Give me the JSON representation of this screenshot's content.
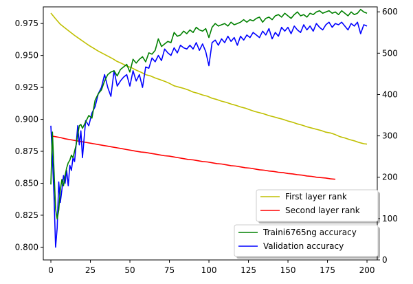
{
  "chart_data": {
    "type": "line",
    "x_ticks": [
      0,
      25,
      50,
      75,
      100,
      125,
      150,
      175,
      200
    ],
    "left_axis": {
      "ylim": [
        0.79,
        0.988
      ],
      "ticks": [
        "0.800",
        "0.825",
        "0.850",
        "0.875",
        "0.900",
        "0.925",
        "0.950",
        "0.975"
      ]
    },
    "right_axis": {
      "ylim": [
        0,
        612
      ],
      "ticks": [
        "0",
        "100",
        "200",
        "300",
        "400",
        "500",
        "600"
      ]
    },
    "xlim": [
      -4.8,
      206.5
    ],
    "legend_right": [
      {
        "label": "First layer rank",
        "color": "#bfbf00"
      },
      {
        "label": "Second layer rank",
        "color": "#ff0000"
      }
    ],
    "legend_left": [
      {
        "label": "Traini6765ng accuracy",
        "color": "#008000"
      },
      {
        "label": "Validation accuracy",
        "color": "#0000ff"
      }
    ],
    "series": [
      {
        "name": "Traini6765ng accuracy",
        "axis": "left",
        "color": "#008000",
        "x": [
          0,
          1,
          2,
          3,
          4,
          5,
          6,
          7,
          8,
          9,
          10,
          11,
          12,
          13,
          14,
          15,
          16,
          17,
          18,
          19,
          20,
          22,
          24,
          26,
          28,
          30,
          32,
          34,
          36,
          38,
          40,
          42,
          44,
          46,
          48,
          50,
          52,
          54,
          56,
          58,
          60,
          62,
          64,
          66,
          68,
          70,
          72,
          74,
          76,
          78,
          80,
          82,
          84,
          86,
          88,
          90,
          92,
          94,
          96,
          98,
          100,
          102,
          104,
          106,
          108,
          110,
          112,
          114,
          116,
          118,
          120,
          122,
          124,
          126,
          128,
          130,
          132,
          134,
          136,
          138,
          140,
          142,
          144,
          146,
          148,
          150,
          152,
          154,
          156,
          158,
          160,
          162,
          164,
          166,
          168,
          170,
          172,
          174,
          176,
          178,
          180,
          182,
          184,
          186,
          188,
          190,
          192,
          194,
          196,
          198,
          200
        ],
        "y": [
          0.849,
          0.89,
          0.86,
          0.83,
          0.822,
          0.829,
          0.845,
          0.853,
          0.848,
          0.856,
          0.862,
          0.866,
          0.868,
          0.872,
          0.87,
          0.875,
          0.88,
          0.888,
          0.895,
          0.896,
          0.893,
          0.898,
          0.903,
          0.901,
          0.915,
          0.92,
          0.923,
          0.93,
          0.935,
          0.937,
          0.938,
          0.934,
          0.939,
          0.941,
          0.943,
          0.937,
          0.947,
          0.944,
          0.947,
          0.949,
          0.945,
          0.952,
          0.951,
          0.954,
          0.963,
          0.957,
          0.959,
          0.961,
          0.96,
          0.968,
          0.965,
          0.966,
          0.969,
          0.967,
          0.97,
          0.968,
          0.972,
          0.97,
          0.969,
          0.971,
          0.964,
          0.972,
          0.975,
          0.973,
          0.974,
          0.975,
          0.973,
          0.976,
          0.974,
          0.975,
          0.976,
          0.978,
          0.976,
          0.978,
          0.977,
          0.979,
          0.98,
          0.976,
          0.979,
          0.98,
          0.978,
          0.981,
          0.982,
          0.98,
          0.983,
          0.981,
          0.979,
          0.982,
          0.984,
          0.981,
          0.982,
          0.98,
          0.983,
          0.982,
          0.984,
          0.985,
          0.983,
          0.984,
          0.985,
          0.983,
          0.984,
          0.982,
          0.985,
          0.983,
          0.981,
          0.984,
          0.982,
          0.983,
          0.986,
          0.984,
          0.983
        ]
      },
      {
        "name": "Validation accuracy",
        "axis": "left",
        "color": "#0000ff",
        "x": [
          0,
          1,
          2,
          3,
          4,
          5,
          6,
          7,
          8,
          9,
          10,
          11,
          12,
          13,
          14,
          15,
          16,
          17,
          18,
          19,
          20,
          22,
          24,
          26,
          28,
          30,
          32,
          34,
          36,
          38,
          40,
          42,
          44,
          46,
          48,
          50,
          52,
          54,
          56,
          58,
          60,
          62,
          64,
          66,
          68,
          70,
          72,
          74,
          76,
          78,
          80,
          82,
          84,
          86,
          88,
          90,
          92,
          94,
          96,
          98,
          100,
          102,
          104,
          106,
          108,
          110,
          112,
          114,
          116,
          118,
          120,
          122,
          124,
          126,
          128,
          130,
          132,
          134,
          136,
          138,
          140,
          142,
          144,
          146,
          148,
          150,
          152,
          154,
          156,
          158,
          160,
          162,
          164,
          166,
          168,
          170,
          172,
          174,
          176,
          178,
          180,
          182,
          184,
          186,
          188,
          190,
          192,
          194,
          196,
          198,
          200
        ],
        "y": [
          0.895,
          0.87,
          0.84,
          0.8,
          0.815,
          0.851,
          0.835,
          0.845,
          0.856,
          0.85,
          0.86,
          0.848,
          0.864,
          0.86,
          0.87,
          0.867,
          0.88,
          0.895,
          0.88,
          0.891,
          0.87,
          0.899,
          0.895,
          0.905,
          0.91,
          0.92,
          0.925,
          0.935,
          0.925,
          0.918,
          0.938,
          0.926,
          0.93,
          0.933,
          0.935,
          0.926,
          0.938,
          0.93,
          0.935,
          0.925,
          0.941,
          0.94,
          0.948,
          0.945,
          0.95,
          0.946,
          0.955,
          0.952,
          0.95,
          0.956,
          0.952,
          0.958,
          0.956,
          0.955,
          0.958,
          0.955,
          0.96,
          0.954,
          0.959,
          0.953,
          0.942,
          0.96,
          0.962,
          0.958,
          0.963,
          0.96,
          0.965,
          0.961,
          0.964,
          0.958,
          0.965,
          0.962,
          0.966,
          0.964,
          0.968,
          0.966,
          0.964,
          0.969,
          0.966,
          0.971,
          0.963,
          0.968,
          0.965,
          0.972,
          0.969,
          0.972,
          0.967,
          0.973,
          0.97,
          0.968,
          0.974,
          0.97,
          0.973,
          0.969,
          0.975,
          0.972,
          0.97,
          0.974,
          0.976,
          0.972,
          0.975,
          0.974,
          0.976,
          0.973,
          0.97,
          0.975,
          0.973,
          0.976,
          0.967,
          0.974,
          0.973
        ]
      },
      {
        "name": "First layer rank",
        "axis": "right",
        "color": "#bfbf00",
        "x": [
          0,
          3,
          6,
          9,
          12,
          15,
          18,
          21,
          24,
          27,
          30,
          33,
          36,
          39,
          42,
          45,
          48,
          51,
          54,
          57,
          60,
          63,
          66,
          69,
          72,
          75,
          78,
          81,
          84,
          87,
          90,
          93,
          96,
          99,
          102,
          105,
          108,
          111,
          114,
          117,
          120,
          123,
          126,
          129,
          132,
          135,
          138,
          141,
          144,
          147,
          150,
          153,
          156,
          159,
          162,
          165,
          168,
          171,
          174,
          177,
          180,
          183,
          186,
          189,
          192,
          195,
          198,
          200
        ],
        "y": [
          597,
          583,
          570,
          561,
          552,
          543,
          535,
          527,
          519,
          512,
          505,
          499,
          493,
          487,
          480,
          475,
          469,
          465,
          459,
          454,
          448,
          445,
          440,
          436,
          432,
          427,
          421,
          418,
          415,
          411,
          406,
          403,
          399,
          396,
          391,
          388,
          384,
          381,
          377,
          374,
          370,
          367,
          363,
          359,
          356,
          353,
          349,
          346,
          343,
          340,
          336,
          333,
          329,
          326,
          322,
          319,
          316,
          313,
          309,
          307,
          303,
          298,
          295,
          291,
          288,
          284,
          281,
          280
        ]
      },
      {
        "name": "Second layer rank",
        "axis": "right",
        "color": "#ff0000",
        "x": [
          0,
          3,
          6,
          9,
          12,
          15,
          18,
          21,
          24,
          27,
          30,
          33,
          36,
          39,
          42,
          45,
          48,
          51,
          54,
          57,
          60,
          63,
          66,
          69,
          72,
          75,
          78,
          81,
          84,
          87,
          90,
          93,
          96,
          99,
          102,
          105,
          108,
          111,
          114,
          117,
          120,
          123,
          126,
          129,
          132,
          135,
          138,
          141,
          144,
          147,
          150,
          153,
          156,
          159,
          162,
          165,
          168,
          171,
          174,
          177,
          180
        ],
        "y": [
          300,
          298,
          296,
          293,
          291,
          289,
          287,
          285,
          283,
          281,
          279,
          277,
          275,
          273,
          271,
          269,
          267,
          265,
          263,
          261,
          260,
          258,
          256,
          254,
          252,
          251,
          249,
          247,
          245,
          243,
          242,
          240,
          238,
          237,
          235,
          233,
          232,
          230,
          228,
          227,
          225,
          223,
          222,
          220,
          218,
          217,
          215,
          214,
          212,
          211,
          209,
          208,
          206,
          205,
          203,
          202,
          200,
          199,
          198,
          196,
          195
        ]
      }
    ]
  }
}
